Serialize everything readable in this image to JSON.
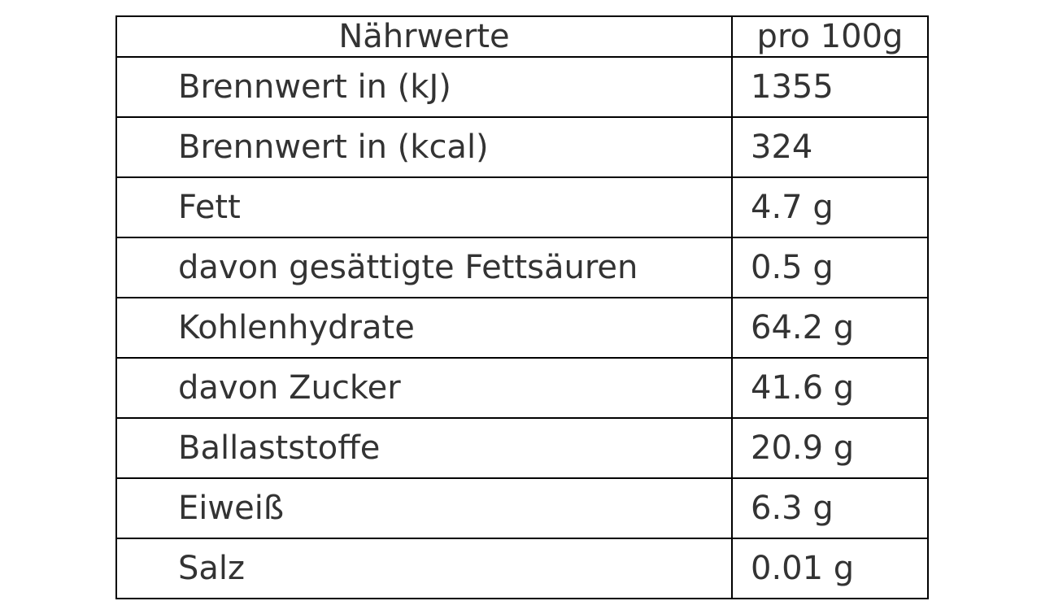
{
  "table": {
    "header": [
      "Nährwerte",
      "pro 100g"
    ],
    "rows": [
      [
        "Brennwert in (kJ)",
        "1355"
      ],
      [
        "Brennwert in (kcal)",
        "324"
      ],
      [
        "Fett",
        "4.7 g"
      ],
      [
        "davon gesättigte Fettsäuren",
        "0.5 g"
      ],
      [
        "Kohlenhydrate",
        "64.2 g"
      ],
      [
        "davon Zucker",
        "41.6 g"
      ],
      [
        "Ballaststoffe",
        "20.9 g"
      ],
      [
        "Eiweiß",
        "6.3 g"
      ],
      [
        "Salz",
        "0.01 g"
      ]
    ]
  }
}
